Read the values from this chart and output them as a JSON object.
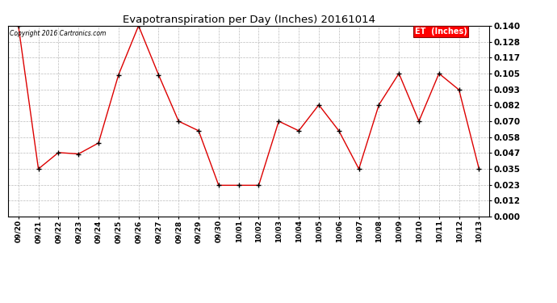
{
  "title": "Evapotranspiration per Day (Inches) 20161014",
  "copyright": "Copyright 2016 Cartronics.com",
  "legend_label": "ET  (Inches)",
  "line_color": "#dd0000",
  "marker_color": "#000000",
  "background_color": "#ffffff",
  "grid_color": "#bbbbbb",
  "labels": [
    "09/20",
    "09/21",
    "09/22",
    "09/23",
    "09/24",
    "09/25",
    "09/26",
    "09/27",
    "09/28",
    "09/29",
    "09/30",
    "10/01",
    "10/02",
    "10/03",
    "10/04",
    "10/05",
    "10/06",
    "10/07",
    "10/08",
    "10/09",
    "10/10",
    "10/11",
    "10/12",
    "10/13"
  ],
  "values": [
    0.14,
    0.035,
    0.047,
    0.046,
    0.054,
    0.104,
    0.14,
    0.104,
    0.07,
    0.063,
    0.023,
    0.023,
    0.023,
    0.07,
    0.063,
    0.082,
    0.063,
    0.035,
    0.082,
    0.105,
    0.07,
    0.105,
    0.093,
    0.035
  ],
  "ylim": [
    0.0,
    0.14
  ],
  "yticks": [
    0.0,
    0.012,
    0.023,
    0.035,
    0.047,
    0.058,
    0.07,
    0.082,
    0.093,
    0.105,
    0.117,
    0.128,
    0.14
  ]
}
